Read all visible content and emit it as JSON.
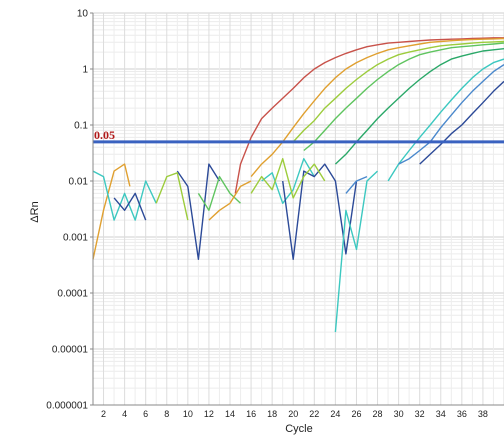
{
  "chart_data": {
    "type": "line",
    "title": "",
    "xlabel": "Cycle",
    "ylabel": "ΔRn",
    "y_scale": "log",
    "ylim": [
      1e-06,
      10
    ],
    "xlim": [
      1,
      40
    ],
    "y_ticks": [
      "10",
      "1",
      "0.1",
      "0.01",
      "0.001",
      "0.0001",
      "0.00001",
      "0.000001"
    ],
    "x_ticks": [
      "2",
      "4",
      "6",
      "8",
      "10",
      "12",
      "14",
      "16",
      "18",
      "20",
      "22",
      "24",
      "26",
      "28",
      "30",
      "32",
      "34",
      "36",
      "38"
    ],
    "grid": true,
    "threshold": {
      "value": 0.05,
      "label": "0.05",
      "color": "#3a62c0"
    },
    "series": [
      {
        "color": "#c8524a",
        "x": [
          14.5,
          15,
          16,
          17,
          18,
          19,
          20,
          21,
          22,
          23,
          24,
          25,
          26,
          27,
          28,
          29,
          30,
          31,
          32,
          33,
          34,
          35,
          36,
          37,
          38,
          39,
          40
        ],
        "y": [
          0.006,
          0.02,
          0.06,
          0.13,
          0.2,
          0.3,
          0.45,
          0.7,
          1.0,
          1.3,
          1.6,
          1.9,
          2.2,
          2.5,
          2.7,
          2.9,
          3.0,
          3.1,
          3.2,
          3.3,
          3.35,
          3.4,
          3.45,
          3.5,
          3.55,
          3.6,
          3.6
        ]
      },
      {
        "color": "#e0a030",
        "x": [
          1,
          2,
          3,
          4,
          4.5
        ],
        "y": [
          0.0004,
          0.003,
          0.015,
          0.02,
          0.008
        ]
      },
      {
        "color": "#e0a030",
        "x": [
          16,
          17,
          18,
          19,
          20,
          21,
          22,
          23,
          24,
          25,
          26,
          27,
          28,
          29,
          30,
          31,
          32,
          33,
          34,
          35,
          36,
          37,
          38,
          39,
          40
        ],
        "y": [
          0.012,
          0.02,
          0.03,
          0.05,
          0.09,
          0.16,
          0.27,
          0.45,
          0.7,
          1.0,
          1.3,
          1.6,
          1.9,
          2.2,
          2.4,
          2.6,
          2.8,
          3.0,
          3.1,
          3.2,
          3.3,
          3.35,
          3.4,
          3.45,
          3.5
        ]
      },
      {
        "color": "#9ccc3c",
        "x": [
          20,
          21,
          22,
          23,
          24,
          25,
          26,
          27,
          28,
          29,
          30,
          31,
          32,
          33,
          34,
          35,
          36,
          37,
          38,
          39,
          40
        ],
        "y": [
          0.05,
          0.08,
          0.12,
          0.2,
          0.3,
          0.45,
          0.65,
          0.9,
          1.2,
          1.5,
          1.8,
          2.0,
          2.2,
          2.4,
          2.6,
          2.7,
          2.8,
          2.9,
          3.0,
          3.05,
          3.1
        ]
      },
      {
        "color": "#5fc45f",
        "x": [
          21,
          22,
          23,
          24,
          25,
          26,
          27,
          28,
          29,
          30,
          31,
          32,
          33,
          34,
          35,
          36,
          37,
          38,
          39,
          40
        ],
        "y": [
          0.035,
          0.05,
          0.08,
          0.13,
          0.2,
          0.3,
          0.45,
          0.65,
          0.9,
          1.2,
          1.5,
          1.8,
          2.0,
          2.2,
          2.4,
          2.5,
          2.6,
          2.7,
          2.8,
          2.9
        ]
      },
      {
        "color": "#2aa868",
        "x": [
          24,
          25,
          26,
          27,
          28,
          29,
          30,
          31,
          32,
          33,
          34,
          35,
          36,
          37,
          38,
          39,
          40
        ],
        "y": [
          0.02,
          0.03,
          0.05,
          0.08,
          0.13,
          0.2,
          0.3,
          0.45,
          0.65,
          0.9,
          1.2,
          1.5,
          1.7,
          1.9,
          2.1,
          2.2,
          2.3
        ]
      },
      {
        "color": "#3cc8c0",
        "x": [
          29,
          30,
          31,
          32,
          33,
          34,
          35,
          36,
          37,
          38,
          39,
          40
        ],
        "y": [
          0.01,
          0.02,
          0.035,
          0.06,
          0.1,
          0.17,
          0.28,
          0.45,
          0.7,
          1.0,
          1.3,
          1.5
        ]
      },
      {
        "color": "#4a88cc",
        "x": [
          30,
          31,
          32,
          33,
          34,
          35,
          36,
          37,
          38,
          39,
          40
        ],
        "y": [
          0.02,
          0.025,
          0.035,
          0.05,
          0.09,
          0.15,
          0.25,
          0.4,
          0.6,
          0.9,
          1.2
        ]
      },
      {
        "color": "#2c4a98",
        "x": [
          32,
          33,
          34,
          35,
          36,
          37,
          38,
          39,
          40
        ],
        "y": [
          0.02,
          0.03,
          0.045,
          0.07,
          0.1,
          0.16,
          0.25,
          0.4,
          0.6
        ]
      },
      {
        "color": "#3cc8c0",
        "x": [
          1,
          2,
          3,
          4,
          5,
          6,
          7
        ],
        "y": [
          0.015,
          0.012,
          0.002,
          0.006,
          0.002,
          0.01,
          0.004
        ]
      },
      {
        "color": "#2c4a98",
        "x": [
          3,
          4,
          5,
          6
        ],
        "y": [
          0.005,
          0.003,
          0.006,
          0.002
        ]
      },
      {
        "color": "#2c4a98",
        "x": [
          9,
          10,
          11,
          12,
          13
        ],
        "y": [
          0.015,
          0.008,
          0.0004,
          0.02,
          0.01
        ]
      },
      {
        "color": "#9ccc3c",
        "x": [
          7,
          8,
          9,
          10
        ],
        "y": [
          0.004,
          0.012,
          0.014,
          0.002
        ]
      },
      {
        "color": "#5fc45f",
        "x": [
          11,
          12,
          13,
          14,
          15
        ],
        "y": [
          0.006,
          0.003,
          0.012,
          0.006,
          0.004
        ]
      },
      {
        "color": "#e0a030",
        "x": [
          12,
          13,
          14,
          15,
          16
        ],
        "y": [
          0.002,
          0.003,
          0.004,
          0.008,
          0.01
        ]
      },
      {
        "color": "#3cc8c0",
        "x": [
          17,
          18,
          19,
          20,
          21,
          22
        ],
        "y": [
          0.01,
          0.014,
          0.004,
          0.007,
          0.025,
          0.012
        ]
      },
      {
        "color": "#2c4a98",
        "x": [
          19,
          20,
          21,
          22,
          23,
          24,
          25,
          26
        ],
        "y": [
          0.01,
          0.0004,
          0.015,
          0.012,
          0.02,
          0.01,
          0.0005,
          0.01
        ]
      },
      {
        "color": "#9ccc3c",
        "x": [
          16,
          17,
          18,
          19,
          20,
          21,
          22,
          23
        ],
        "y": [
          0.006,
          0.012,
          0.007,
          0.025,
          0.005,
          0.012,
          0.02,
          0.01
        ]
      },
      {
        "color": "#3cc8c0",
        "x": [
          24,
          25,
          26,
          27,
          28
        ],
        "y": [
          2e-05,
          0.003,
          0.0006,
          0.01,
          0.015
        ]
      },
      {
        "color": "#4a88cc",
        "x": [
          25,
          26,
          27
        ],
        "y": [
          0.006,
          0.01,
          0.012
        ]
      }
    ]
  }
}
